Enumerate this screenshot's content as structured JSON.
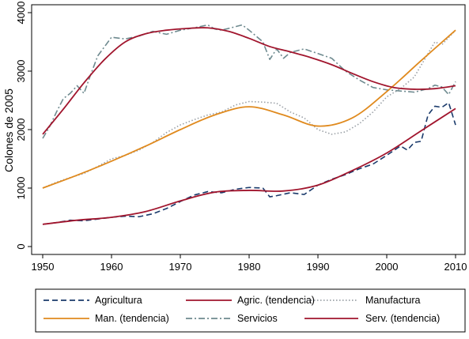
{
  "chart_data": {
    "type": "line",
    "title": "",
    "xlabel": "",
    "ylabel": "Colones de 2005",
    "xlim": [
      1950,
      2010
    ],
    "ylim": [
      0,
      4000
    ],
    "x_ticks": [
      "1950",
      "1960",
      "1970",
      "1980",
      "1990",
      "2000",
      "2010"
    ],
    "y_ticks": [
      "0",
      "1000",
      "2000",
      "3000",
      "4000"
    ],
    "grid": false,
    "legend_position": "bottom",
    "series": [
      {
        "name": "Agricultura",
        "color": "#1a3a6b",
        "style": "dashed",
        "x": [
          1950,
          1952,
          1954,
          1956,
          1958,
          1960,
          1962,
          1964,
          1966,
          1968,
          1970,
          1972,
          1974,
          1976,
          1978,
          1980,
          1982,
          1983,
          1984,
          1986,
          1988,
          1990,
          1992,
          1994,
          1996,
          1998,
          2000,
          2002,
          2003,
          2004,
          2005,
          2006,
          2007,
          2008,
          2009,
          2010
        ],
        "y": [
          380,
          410,
          450,
          440,
          470,
          500,
          520,
          510,
          560,
          650,
          770,
          880,
          940,
          920,
          980,
          1010,
          1000,
          850,
          870,
          920,
          890,
          1050,
          1150,
          1230,
          1330,
          1410,
          1560,
          1720,
          1650,
          1780,
          1800,
          2250,
          2400,
          2380,
          2460,
          2080
        ]
      },
      {
        "name": "Agric. (tendencia)",
        "color": "#a1152d",
        "style": "solid",
        "x": [
          1950,
          1955,
          1960,
          1965,
          1970,
          1975,
          1980,
          1985,
          1990,
          1995,
          2000,
          2005,
          2010
        ],
        "y": [
          380,
          450,
          500,
          600,
          780,
          930,
          960,
          950,
          1050,
          1300,
          1600,
          1980,
          2360
        ]
      },
      {
        "name": "Manufactura",
        "color": "#9aa0a6",
        "style": "dotted",
        "x": [
          1950,
          1952,
          1954,
          1956,
          1958,
          1960,
          1962,
          1964,
          1966,
          1968,
          1970,
          1972,
          1974,
          1976,
          1978,
          1980,
          1982,
          1984,
          1986,
          1988,
          1990,
          1992,
          1994,
          1996,
          1998,
          2000,
          2002,
          2004,
          2006,
          2007,
          2008,
          2010
        ],
        "y": [
          1000,
          1100,
          1180,
          1250,
          1370,
          1500,
          1560,
          1650,
          1780,
          1950,
          2080,
          2170,
          2250,
          2300,
          2420,
          2480,
          2470,
          2450,
          2300,
          2200,
          2000,
          1920,
          1960,
          2100,
          2300,
          2560,
          2700,
          2900,
          3300,
          3500,
          3450,
          3700
        ]
      },
      {
        "name": "Man. (tendencia)",
        "color": "#e08a1e",
        "style": "solid",
        "x": [
          1950,
          1955,
          1960,
          1965,
          1970,
          1975,
          1980,
          1985,
          1990,
          1995,
          2000,
          2005,
          2010
        ],
        "y": [
          1000,
          1220,
          1460,
          1720,
          2000,
          2250,
          2390,
          2250,
          2060,
          2200,
          2650,
          3180,
          3700
        ]
      },
      {
        "name": "Servicios",
        "color": "#6e8a8f",
        "style": "dashdot",
        "x": [
          1950,
          1951,
          1952,
          1953,
          1954,
          1955,
          1956,
          1957,
          1958,
          1959,
          1960,
          1962,
          1964,
          1966,
          1968,
          1970,
          1972,
          1974,
          1975,
          1976,
          1978,
          1979,
          1980,
          1982,
          1983,
          1984,
          1985,
          1986,
          1988,
          1990,
          1992,
          1994,
          1996,
          1998,
          2000,
          2002,
          2004,
          2006,
          2007,
          2008,
          2009,
          2010
        ],
        "y": [
          1850,
          2050,
          2300,
          2530,
          2620,
          2750,
          2620,
          2950,
          3260,
          3420,
          3580,
          3550,
          3600,
          3680,
          3630,
          3700,
          3740,
          3790,
          3720,
          3700,
          3760,
          3790,
          3700,
          3500,
          3200,
          3380,
          3220,
          3320,
          3380,
          3300,
          3220,
          3000,
          2850,
          2720,
          2680,
          2660,
          2640,
          2700,
          2760,
          2730,
          2600,
          2820
        ]
      },
      {
        "name": "Serv. (tendencia)",
        "color": "#a1152d",
        "style": "solid",
        "x": [
          1950,
          1953,
          1956,
          1959,
          1962,
          1965,
          1968,
          1971,
          1974,
          1977,
          1980,
          1983,
          1986,
          1989,
          1992,
          1995,
          1998,
          2001,
          2004,
          2007,
          2010
        ],
        "y": [
          1920,
          2350,
          2800,
          3200,
          3500,
          3640,
          3700,
          3730,
          3740,
          3680,
          3560,
          3420,
          3330,
          3230,
          3110,
          2960,
          2820,
          2720,
          2690,
          2700,
          2750
        ]
      }
    ]
  }
}
